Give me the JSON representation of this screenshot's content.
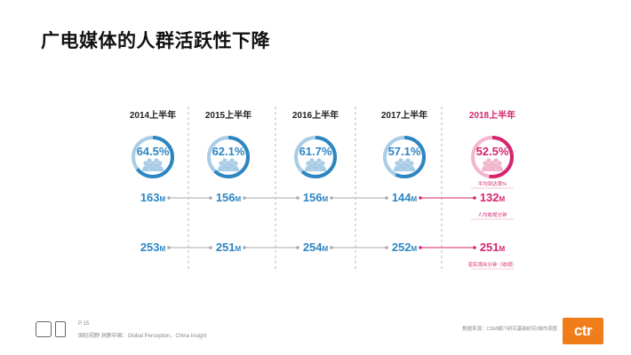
{
  "title": "广电媒体的人群活跃性下降",
  "colors": {
    "blue": "#2e86c1",
    "blue_light": "#a9cde6",
    "magenta": "#d6246e",
    "magenta_light": "#f2b6cd",
    "connector": "#aaaaaa",
    "divider": "#bbbbbb"
  },
  "chart_data": {
    "type": "table",
    "categories": [
      "2014上半年",
      "2015上半年",
      "2016上半年",
      "2017上半年",
      "2018上半年"
    ],
    "series": [
      {
        "values": [
          64.5,
          62.1,
          61.7,
          57.1,
          52.5
        ],
        "labels": [
          "64.5%",
          "62.1%",
          "61.7%",
          "57.1%",
          "52.5%"
        ],
        "annotation": "平均到达率%"
      },
      {
        "values": [
          163,
          156,
          156,
          144,
          132
        ],
        "unit": "M",
        "annotation": "人均收视分钟"
      },
      {
        "values": [
          253,
          251,
          254,
          252,
          251
        ],
        "unit": "M",
        "annotation": "忠实观众分钟（收视）"
      }
    ],
    "highlight_index": 4
  },
  "footer": {
    "page": "P 15",
    "text": "国际视野 洞察中国：Global Perception，China Insight",
    "source": "数据来源：CSM媒介研究基础研究/城市调查"
  },
  "logo": {
    "text": "ctr"
  },
  "icons": {
    "people": "people-group-icon"
  }
}
